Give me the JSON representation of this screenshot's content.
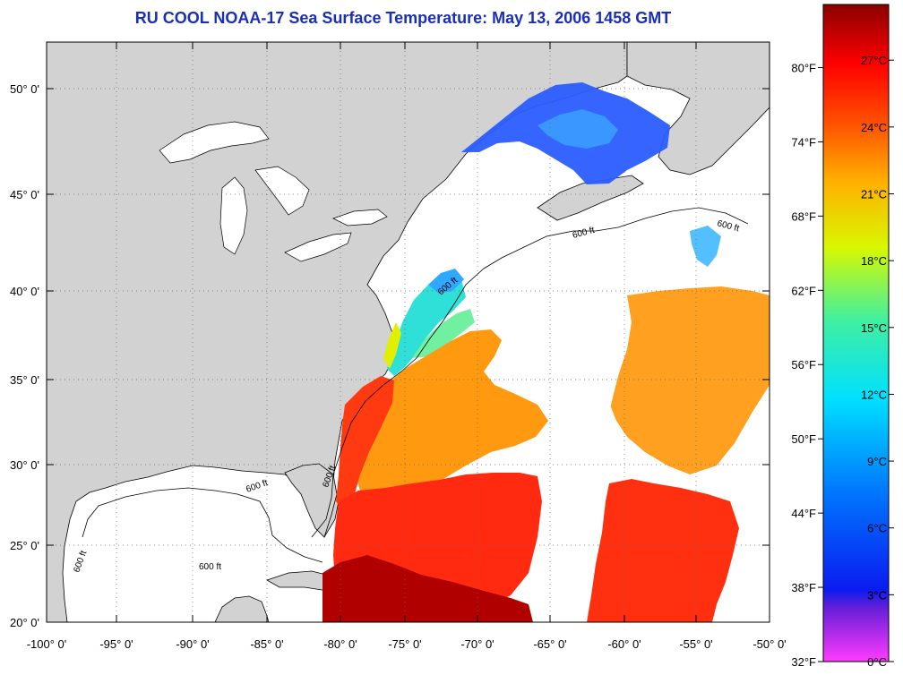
{
  "title": "RU COOL  NOAA-17  Sea Surface Temperature:  May 13, 2006 1458 GMT",
  "map": {
    "lon_ticks": [
      "-100° 0'",
      "-95° 0'",
      "-90° 0'",
      "-85° 0'",
      "-80° 0'",
      "-75° 0'",
      "-70° 0'",
      "-65° 0'",
      "-60° 0'",
      "-55° 0'",
      "-50° 0'"
    ],
    "lat_ticks": [
      "20° 0'",
      "25° 0'",
      "30° 0'",
      "35° 0'",
      "40° 0'",
      "45° 0'",
      "50° 0'"
    ],
    "contour_label": "600 ft",
    "land_color": "#d2d2d2",
    "ocean_no_data_color": "#ffffff"
  },
  "colorbar": {
    "celsius_labels": [
      "0°C",
      "3°C",
      "6°C",
      "9°C",
      "12°C",
      "15°C",
      "18°C",
      "21°C",
      "24°C",
      "27°C"
    ],
    "fahrenheit_labels": [
      "32°F",
      "38°F",
      "44°F",
      "50°F",
      "56°F",
      "62°F",
      "68°F",
      "74°F",
      "80°F"
    ],
    "colors": [
      "#ff3cff",
      "#6a1fd8",
      "#0a1cf0",
      "#0078ff",
      "#00e0ff",
      "#40f0a0",
      "#d8f800",
      "#ffb000",
      "#ff5000",
      "#ff0000",
      "#8a0000"
    ]
  }
}
